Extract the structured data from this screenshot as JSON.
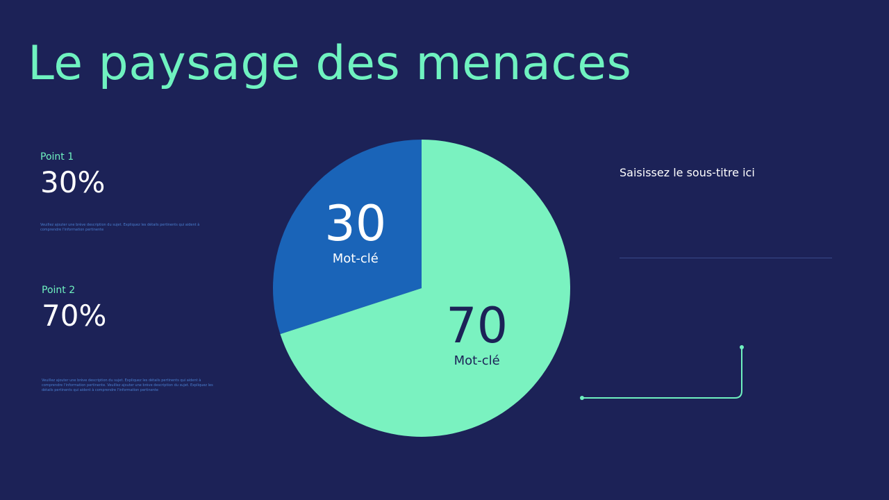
{
  "title": "Le paysage des menaces",
  "points": [
    {
      "label": "Point 1",
      "value": "30%",
      "description": "Veuillez ajouter une brève description du sujet. Expliquez les détails pertinents qui aident à comprendre l'information pertinente"
    },
    {
      "label": "Point 2",
      "value": "70%",
      "description": "Veuillez ajouter une brève description du sujet. Expliquez les détails pertinents qui aident à comprendre l'information pertinente. Veuillez ajouter une brève description du sujet. Expliquez les détails pertinents qui aident à comprendre l'information pertinente"
    }
  ],
  "subtitle": "Saisissez le sous-titre ici",
  "colors": {
    "background": "#1c2257",
    "accent": "#6ff2c0",
    "slice_blue": "#1a64b8",
    "slice_green": "#7af2c0",
    "dark_text": "#1c2257",
    "white": "#ffffff"
  },
  "chart_data": {
    "type": "pie",
    "categories": [
      "Mot-clé",
      "Mot-clé"
    ],
    "values": [
      30,
      70
    ],
    "data_labels": [
      "30",
      "70"
    ],
    "slice_colors": [
      "#1a64b8",
      "#7af2c0"
    ],
    "label_colors": [
      "#ffffff",
      "#1c2257"
    ]
  }
}
